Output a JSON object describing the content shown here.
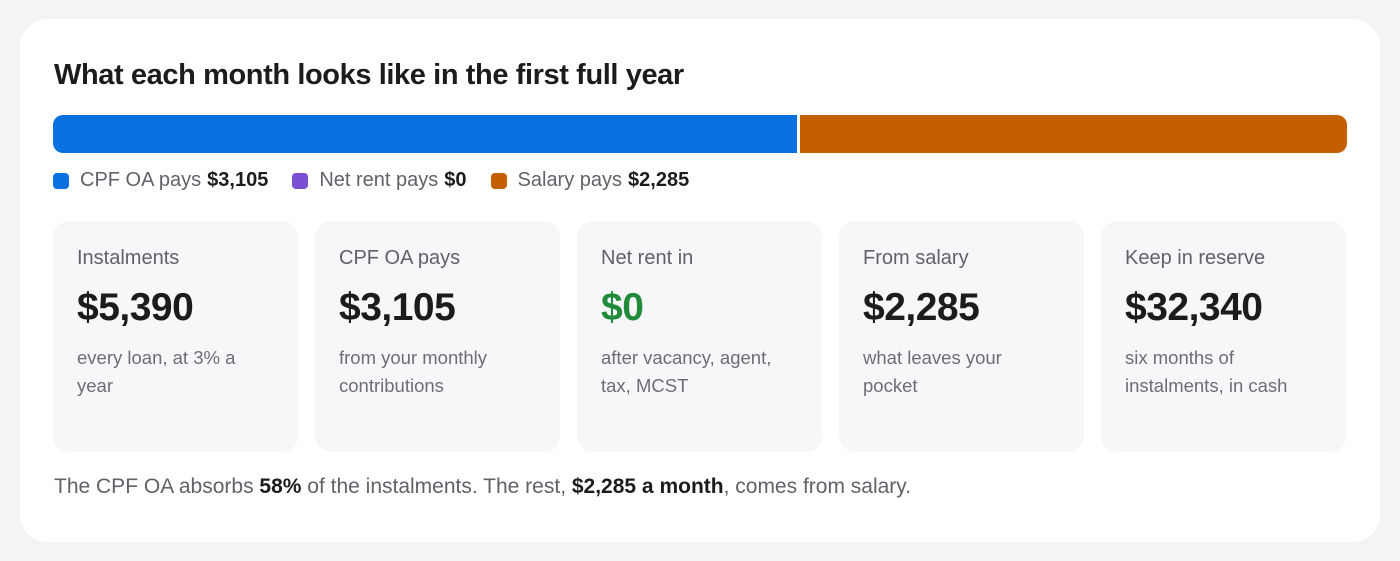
{
  "title": "What each month looks like in the first full year",
  "bar": {
    "segments": [
      {
        "name": "CPF OA",
        "value": 3105,
        "color": "#0a72e0"
      },
      {
        "name": "Net rent",
        "value": 0,
        "color": "#7b4fd1"
      },
      {
        "name": "Salary",
        "value": 2285,
        "color": "#c45f00"
      }
    ]
  },
  "legend": [
    {
      "label": "CPF OA pays",
      "value": "$3,105",
      "color": "#0a72e0"
    },
    {
      "label": "Net rent pays",
      "value": "$0",
      "color": "#7b4fd1"
    },
    {
      "label": "Salary pays",
      "value": "$2,285",
      "color": "#c45f00"
    }
  ],
  "tiles": [
    {
      "label": "Instalments",
      "value": "$5,390",
      "desc": "every loan, at 3% a year"
    },
    {
      "label": "CPF OA pays",
      "value": "$3,105",
      "desc": "from your monthly contributions"
    },
    {
      "label": "Net rent in",
      "value": "$0",
      "desc": "after vacancy, agent, tax, MCST",
      "accent": "#228b3b"
    },
    {
      "label": "From salary",
      "value": "$2,285",
      "desc": "what leaves your pocket"
    },
    {
      "label": "Keep in reserve",
      "value": "$32,340",
      "desc": "six months of instalments, in cash"
    }
  ],
  "summary": {
    "part1": "The CPF OA absorbs ",
    "pct": "58%",
    "part2": " of the instalments. The rest, ",
    "amount": "$2,285 a month",
    "part3": ", comes from salary."
  }
}
